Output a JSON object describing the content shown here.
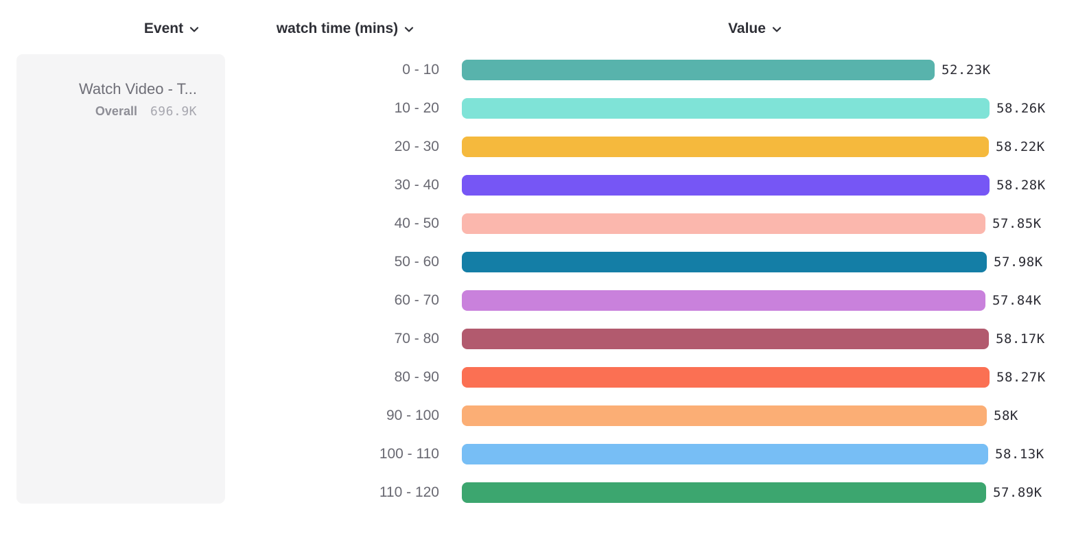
{
  "columns": [
    {
      "label": "Event",
      "icon": "chevron-down-icon"
    },
    {
      "label": "watch time (mins)",
      "icon": "chevron-down-icon"
    },
    {
      "label": "Value",
      "icon": "chevron-down-icon"
    }
  ],
  "event_card": {
    "title": "Watch Video - T...",
    "overall_label": "Overall",
    "overall_value": "696.9K"
  },
  "chart_data": {
    "type": "bar",
    "orientation": "horizontal",
    "title": "",
    "xlabel": "Value",
    "ylabel": "watch time (mins)",
    "grid": false,
    "legend": null,
    "xlim": [
      0,
      58280
    ],
    "categories": [
      "0 - 10",
      "10 - 20",
      "20 - 30",
      "30 - 40",
      "40 - 50",
      "50 - 60",
      "60 - 70",
      "70 - 80",
      "80 - 90",
      "90 - 100",
      "100 - 110",
      "110 - 120"
    ],
    "values": [
      52230,
      58260,
      58220,
      58280,
      57850,
      57980,
      57840,
      58170,
      58270,
      58000,
      58130,
      57890
    ],
    "value_labels": [
      "52.23K",
      "58.26K",
      "58.22K",
      "58.28K",
      "57.85K",
      "57.98K",
      "57.84K",
      "58.17K",
      "58.27K",
      "58K",
      "58.13K",
      "57.89K"
    ],
    "bar_colors": [
      "#58B3AC",
      "#7FE3D7",
      "#F5B93D",
      "#7656F5",
      "#FBB7AD",
      "#147EA6",
      "#C981DC",
      "#B25A6E",
      "#FB7053",
      "#FBAE75",
      "#77BEF5",
      "#3CA66F"
    ]
  }
}
